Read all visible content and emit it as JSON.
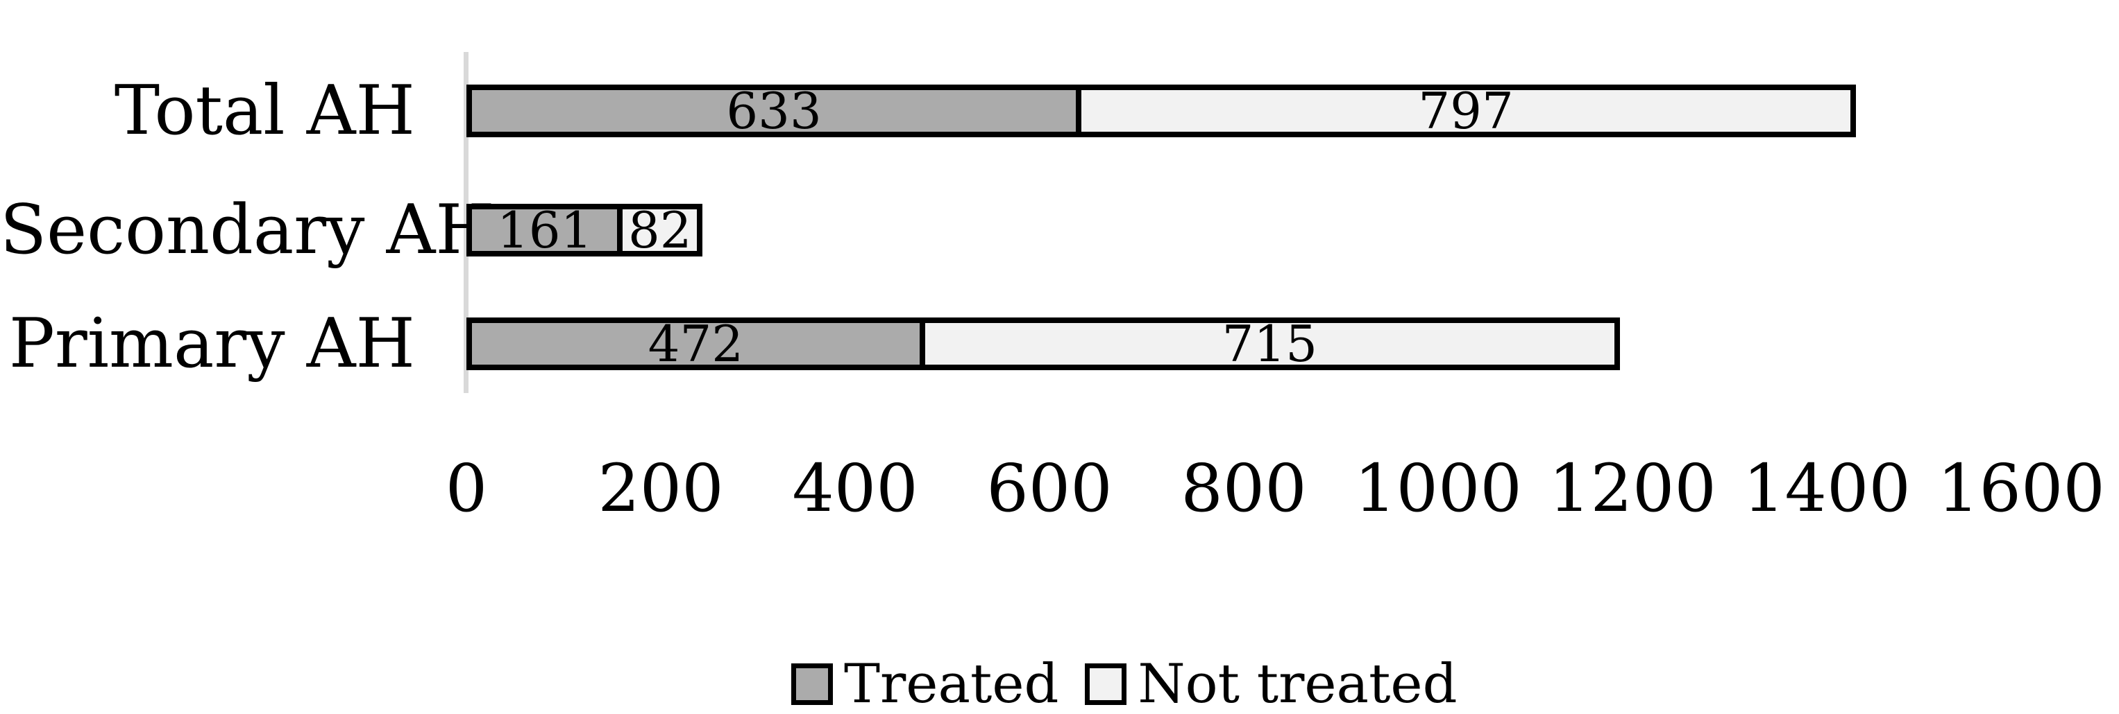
{
  "chart_data": {
    "type": "bar",
    "orientation": "horizontal",
    "stacked": true,
    "title": "",
    "xlabel": "",
    "ylabel": "",
    "categories": [
      "Total AH",
      "Secondary AH",
      "Primary AH"
    ],
    "series": [
      {
        "name": "Treated",
        "color": "#ABABAB",
        "values": [
          633,
          161,
          472
        ]
      },
      {
        "name": "Not treated",
        "color": "#F2F2F2",
        "values": [
          797,
          82,
          715
        ]
      }
    ],
    "totals": [
      1430,
      243,
      1187
    ],
    "xlim": [
      0,
      1600
    ],
    "x_ticks": [
      "0",
      "200",
      "400",
      "600",
      "800",
      "1000",
      "1200",
      "1400",
      "1600"
    ],
    "grid": false,
    "legend_position": "bottom",
    "bar_border_color": "#000000",
    "axis_line_color": "#D9D9D9",
    "background_color": "#FFFFFF",
    "text_color": "#000000"
  }
}
